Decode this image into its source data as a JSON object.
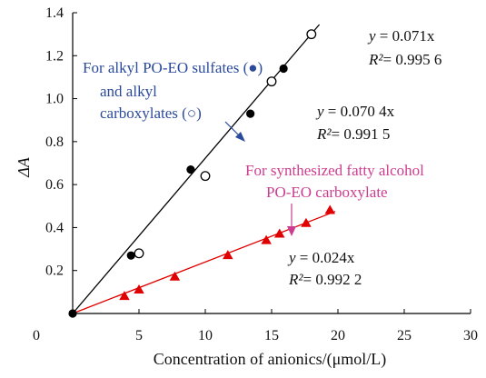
{
  "chart_data": {
    "type": "scatter",
    "title": "",
    "xlabel": "Concentration of anionics/(μmol/L)",
    "ylabel": "ΔA",
    "xlim": [
      0,
      30
    ],
    "ylim": [
      0,
      1.4
    ],
    "x_ticks": [
      "0",
      "5",
      "10",
      "15",
      "20",
      "25",
      "30"
    ],
    "y_ticks": [
      "0.2",
      "0.4",
      "0.6",
      "0.8",
      "1.0",
      "1.2",
      "1.4"
    ],
    "grid": false,
    "series": [
      {
        "marker": "filled-circle",
        "color": "#000000",
        "x": [
          0,
          4.4,
          8.9,
          13.4,
          15.9
        ],
        "y": [
          0,
          0.27,
          0.67,
          0.93,
          1.14
        ]
      },
      {
        "marker": "open-circle",
        "color": "#000000",
        "x": [
          5.0,
          10.0,
          15.0,
          18.0
        ],
        "y": [
          0.28,
          0.64,
          1.08,
          1.3
        ]
      },
      {
        "marker": "triangle",
        "color": "#e00000",
        "x": [
          3.9,
          5.0,
          7.7,
          11.7,
          14.6,
          15.6,
          17.6,
          19.4
        ],
        "y": [
          0.08,
          0.11,
          0.17,
          0.27,
          0.34,
          0.37,
          0.42,
          0.48
        ]
      }
    ],
    "fit_lines": [
      {
        "color": "#000000",
        "x": [
          0,
          18.6
        ],
        "y": [
          0,
          1.345
        ]
      },
      {
        "color": "#e00000",
        "x": [
          0,
          19.8
        ],
        "y": [
          0,
          0.475
        ]
      }
    ],
    "annotations": {
      "blue_line1": "For alkyl PO-EO sulfates (●)",
      "blue_line2": "and alkyl",
      "blue_line3": "carboxylates (○)",
      "pink_line1": "For synthesized fatty alcohol",
      "pink_line2": "PO-EO carboxylate",
      "eq1_prefix": "y",
      "eq1_rest": " = 0.071x",
      "r1_prefix": "R²",
      "r1_rest": "= 0.995 6",
      "eq2_prefix": "y",
      "eq2_rest": " = 0.070 4x",
      "r2_prefix": "R²",
      "r2_rest": "= 0.991 5",
      "eq3_prefix": "y",
      "eq3_rest": " = 0.024x",
      "r3_prefix": "R²",
      "r3_rest": "= 0.992 2"
    },
    "colors": {
      "blue": "#2b4a9b",
      "pink": "#cc3d8f",
      "red": "#e00000",
      "black": "#000000"
    }
  }
}
